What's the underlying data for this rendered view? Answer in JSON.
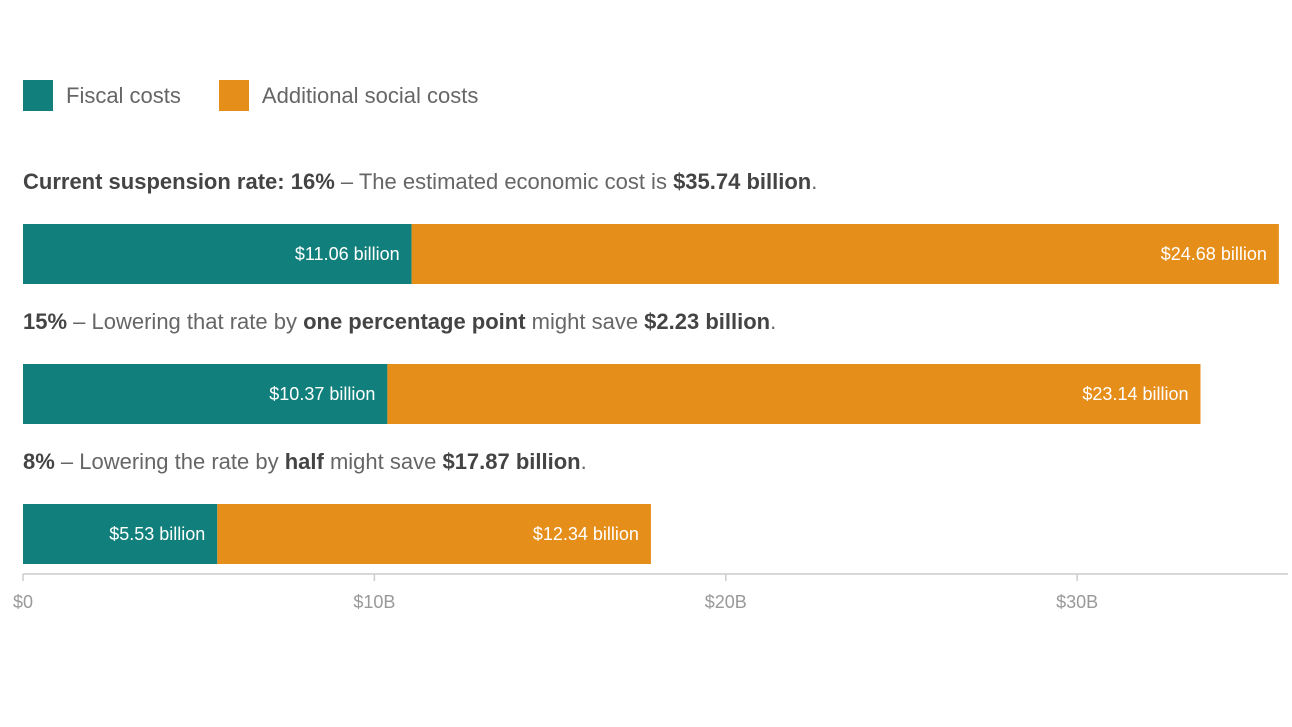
{
  "legend": {
    "items": [
      {
        "label": "Fiscal costs",
        "color": "#11807c"
      },
      {
        "label": "Additional social costs",
        "color": "#e58e1a"
      }
    ]
  },
  "rows": [
    {
      "caption_parts": [
        {
          "text": "Current suspension rate: 16%",
          "bold": true
        },
        {
          "text": " – The estimated economic cost is ",
          "bold": false
        },
        {
          "text": "$35.74 billion",
          "bold": true
        },
        {
          "text": ".",
          "bold": false
        }
      ]
    },
    {
      "caption_parts": [
        {
          "text": "15%",
          "bold": true
        },
        {
          "text": " – Lowering that rate by ",
          "bold": false
        },
        {
          "text": "one percentage point",
          "bold": true
        },
        {
          "text": " might save ",
          "bold": false
        },
        {
          "text": "$2.23 billion",
          "bold": true
        },
        {
          "text": ".",
          "bold": false
        }
      ]
    },
    {
      "caption_parts": [
        {
          "text": "8%",
          "bold": true
        },
        {
          "text": " – Lowering the rate by ",
          "bold": false
        },
        {
          "text": "half",
          "bold": true
        },
        {
          "text": " might save ",
          "bold": false
        },
        {
          "text": "$17.87 billion",
          "bold": true
        },
        {
          "text": ".",
          "bold": false
        }
      ]
    }
  ],
  "chart_data": {
    "type": "bar",
    "orientation": "horizontal",
    "stacked": true,
    "categories": [
      "16%",
      "15%",
      "8%"
    ],
    "series": [
      {
        "name": "Fiscal costs",
        "color": "#11807c",
        "values": [
          11.06,
          10.37,
          5.53
        ],
        "labels": [
          "$11.06 billion",
          "$10.37 billion",
          "$5.53 billion"
        ]
      },
      {
        "name": "Additional social costs",
        "color": "#e58e1a",
        "values": [
          24.68,
          23.14,
          12.34
        ],
        "labels": [
          "$24.68 billion",
          "$23.14 billion",
          "$12.34 billion"
        ]
      }
    ],
    "xlim": [
      0,
      36
    ],
    "x_ticks": [
      0,
      10,
      20,
      30
    ],
    "x_tick_labels": [
      "$0",
      "$10B",
      "$20B",
      "$30B"
    ],
    "grid": false,
    "legend_position": "top-left",
    "axis_color": "#cccccc"
  }
}
